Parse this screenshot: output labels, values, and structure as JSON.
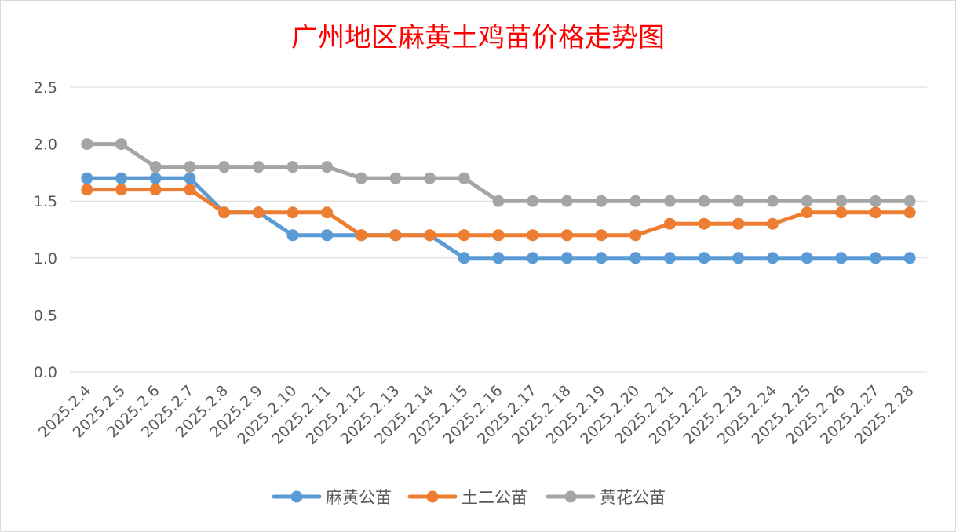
{
  "chart_data": {
    "type": "line",
    "title": "广州地区麻黄土鸡苗价格走势图",
    "xlabel": "",
    "ylabel": "",
    "ylim": [
      0,
      2.5
    ],
    "yticks": [
      "0.0",
      "0.5",
      "1.0",
      "1.5",
      "2.0",
      "2.5"
    ],
    "y_tick_values": [
      0,
      0.5,
      1.0,
      1.5,
      2.0,
      2.5
    ],
    "grid": "horizontal",
    "legend_position": "bottom",
    "categories": [
      "2025.2.4",
      "2025.2.5",
      "2025.2.6",
      "2025.2.7",
      "2025.2.8",
      "2025.2.9",
      "2025.2.10",
      "2025.2.11",
      "2025.2.12",
      "2025.2.13",
      "2025.2.14",
      "2025.2.15",
      "2025.2.16",
      "2025.2.17",
      "2025.2.18",
      "2025.2.19",
      "2025.2.20",
      "2025.2.21",
      "2025.2.22",
      "2025.2.23",
      "2025.2.24",
      "2025.2.25",
      "2025.2.26",
      "2025.2.27",
      "2025.2.28"
    ],
    "series": [
      {
        "name": "麻黄公苗",
        "color": "#5b9bd5",
        "values": [
          1.7,
          1.7,
          1.7,
          1.7,
          1.4,
          1.4,
          1.2,
          1.2,
          1.2,
          1.2,
          1.2,
          1.0,
          1.0,
          1.0,
          1.0,
          1.0,
          1.0,
          1.0,
          1.0,
          1.0,
          1.0,
          1.0,
          1.0,
          1.0,
          1.0
        ]
      },
      {
        "name": "土二公苗",
        "color": "#ed7d31",
        "values": [
          1.6,
          1.6,
          1.6,
          1.6,
          1.4,
          1.4,
          1.4,
          1.4,
          1.2,
          1.2,
          1.2,
          1.2,
          1.2,
          1.2,
          1.2,
          1.2,
          1.2,
          1.3,
          1.3,
          1.3,
          1.3,
          1.4,
          1.4,
          1.4,
          1.4
        ]
      },
      {
        "name": "黄花公苗",
        "color": "#a5a5a5",
        "values": [
          2.0,
          2.0,
          1.8,
          1.8,
          1.8,
          1.8,
          1.8,
          1.8,
          1.7,
          1.7,
          1.7,
          1.7,
          1.5,
          1.5,
          1.5,
          1.5,
          1.5,
          1.5,
          1.5,
          1.5,
          1.5,
          1.5,
          1.5,
          1.5,
          1.5
        ]
      }
    ],
    "colors": {
      "title": "#ff0000",
      "gridline": "#d9d9d9",
      "tick_label": "#595959"
    }
  }
}
